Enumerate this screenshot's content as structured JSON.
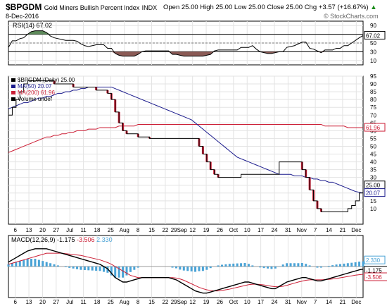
{
  "header": {
    "symbol": "$BPGDM",
    "name": "Gold Miners Bullish Percent Index",
    "exchange": "INDX",
    "date": "8-Dec-2016",
    "quote": "Open 25.00  High 25.00  Low 25.00  Close 25.00  Chg +3.57 (+16.67%)",
    "quote_arrow": "▲",
    "watermark": "© StockCharts.com"
  },
  "chart_data": [
    {
      "type": "line",
      "panel": "rsi",
      "legend": "RSI(14) 67.02",
      "ylim": [
        0,
        100
      ],
      "ticks": [
        10,
        30,
        50,
        70,
        90
      ],
      "overbought": 70,
      "oversold": 30,
      "last_value_label": "67.02",
      "x": [
        0,
        2,
        4,
        6,
        8,
        10,
        12,
        14,
        16,
        18,
        20,
        22,
        24,
        26,
        28,
        30,
        32,
        34,
        36,
        38,
        40,
        42,
        44,
        46,
        48,
        50,
        52,
        54,
        56,
        58,
        60,
        62,
        64,
        66,
        68,
        70,
        72,
        74,
        76,
        78,
        80,
        82,
        84,
        86,
        88,
        90,
        92,
        94,
        96,
        98,
        100,
        102,
        104,
        106,
        108,
        110,
        112,
        114,
        116,
        118,
        120,
        122,
        124,
        126,
        128,
        130,
        132,
        134,
        136,
        138,
        140,
        142,
        144,
        146,
        148,
        150,
        152,
        154,
        156,
        158,
        160,
        162,
        164,
        166,
        168,
        170,
        172,
        174,
        176,
        178,
        180,
        182,
        184,
        186
      ],
      "values": [
        40,
        55,
        55,
        60,
        62,
        70,
        76,
        78,
        78,
        78,
        74,
        66,
        62,
        60,
        58,
        56,
        56,
        56,
        54,
        48,
        44,
        42,
        44,
        46,
        46,
        46,
        38,
        38,
        26,
        22,
        20,
        20,
        20,
        20,
        24,
        30,
        32,
        32,
        32,
        32,
        32,
        32,
        32,
        24,
        24,
        22,
        20,
        20,
        20,
        20,
        20,
        20,
        22,
        24,
        32,
        34,
        34,
        34,
        34,
        34,
        34,
        40,
        40,
        40,
        44,
        36,
        30,
        28,
        26,
        26,
        28,
        30,
        30,
        40,
        42,
        44,
        48,
        52,
        52,
        38,
        36,
        32,
        28,
        34,
        34,
        34,
        38,
        38,
        44,
        44,
        50,
        56,
        62,
        67.02
      ]
    },
    {
      "type": "line",
      "panel": "price",
      "legend": [
        {
          "name": "$BPGDM (Daily) 25.00",
          "color": "#000000"
        },
        {
          "name": "MA(50) 20.07",
          "color": "#1a1a8c"
        },
        {
          "name": "MA(200) 61.96",
          "color": "#cc1f36"
        },
        {
          "name": "Volume undef",
          "color": "#000000"
        }
      ],
      "ylim": [
        0,
        95
      ],
      "y_ticks": [
        10,
        15,
        20,
        25,
        30,
        35,
        40,
        45,
        50,
        55,
        60,
        65,
        70,
        75,
        80,
        85,
        90,
        95
      ],
      "x_labels": [
        "6",
        "13",
        "20",
        "27",
        "Jul",
        "11",
        "18",
        "25",
        "Aug",
        "8",
        "15",
        "22",
        "29Sep",
        "12",
        "19",
        "26",
        "Oct",
        "10",
        "17",
        "24",
        "31",
        "Nov",
        "7",
        "14",
        "21",
        "Dec"
      ],
      "x": [
        0,
        2,
        4,
        6,
        8,
        10,
        12,
        14,
        16,
        18,
        20,
        22,
        24,
        26,
        28,
        30,
        32,
        34,
        36,
        38,
        40,
        42,
        44,
        46,
        48,
        50,
        52,
        54,
        56,
        58,
        60,
        62,
        64,
        66,
        68,
        70,
        72,
        74,
        76,
        78,
        80,
        82,
        84,
        86,
        88,
        90,
        92,
        94,
        96,
        98,
        100,
        102,
        104,
        106,
        108,
        110,
        112,
        114,
        116,
        118,
        120,
        122,
        124,
        126,
        128,
        130,
        132,
        134,
        136,
        138,
        140,
        142,
        144,
        146,
        148,
        150,
        152,
        154,
        156,
        158,
        160,
        162,
        164,
        166,
        168,
        170,
        172,
        174,
        176,
        178,
        180,
        182,
        184,
        186
      ],
      "values": [
        70,
        75,
        80,
        85,
        90,
        92,
        92,
        92,
        92,
        92,
        92,
        92,
        90,
        90,
        90,
        90,
        90,
        88,
        88,
        88,
        88,
        88,
        88,
        86,
        86,
        86,
        84,
        80,
        72,
        65,
        60,
        58,
        58,
        58,
        56,
        56,
        56,
        55,
        55,
        55,
        55,
        55,
        55,
        55,
        55,
        55,
        55,
        55,
        55,
        55,
        50,
        45,
        40,
        35,
        32,
        30,
        30,
        30,
        30,
        30,
        30,
        32,
        32,
        32,
        32,
        32,
        32,
        32,
        32,
        32,
        32,
        40,
        40,
        40,
        40,
        40,
        40,
        35,
        30,
        22,
        15,
        10,
        8,
        8,
        8,
        8,
        8,
        8,
        8,
        10,
        12,
        15,
        20,
        25
      ],
      "ma50": [
        74,
        75,
        76,
        77,
        78,
        78,
        79,
        80,
        81,
        81,
        82,
        82,
        83,
        84,
        84,
        85,
        85,
        86,
        86,
        87,
        87,
        88,
        88,
        88,
        88,
        88,
        88,
        88,
        87,
        86,
        85,
        84,
        83,
        82,
        81,
        80,
        79,
        78,
        77,
        76,
        75,
        74,
        73,
        72,
        71,
        70,
        69,
        68,
        67,
        65,
        63,
        61,
        59,
        57,
        55,
        53,
        51,
        49,
        47,
        45,
        43,
        42,
        41,
        40,
        39,
        38,
        37,
        36,
        35,
        34,
        33,
        32,
        32,
        32,
        32,
        31,
        31,
        31,
        30,
        30,
        29,
        29,
        28,
        28,
        27,
        27,
        26,
        25,
        24,
        23,
        22,
        21,
        20.5,
        20.07
      ],
      "ma200": [
        46,
        47,
        48,
        49,
        50,
        51,
        52,
        53,
        54,
        55,
        56,
        56,
        57,
        57,
        58,
        58,
        59,
        59,
        60,
        60,
        60,
        61,
        61,
        61,
        62,
        62,
        62,
        62,
        62,
        63,
        63,
        63,
        63,
        63,
        64,
        64,
        64,
        64,
        64,
        64,
        64,
        64,
        64,
        64,
        64,
        64,
        64,
        64,
        64,
        64,
        64,
        64,
        64,
        64,
        64,
        64,
        64,
        64,
        64,
        64,
        64,
        64,
        64,
        64,
        64,
        64,
        64,
        64,
        64,
        64,
        64,
        64,
        64,
        64,
        64,
        64,
        64,
        64,
        64,
        64,
        64,
        64,
        64,
        63,
        63,
        63,
        63,
        63,
        63,
        62,
        62,
        62,
        62,
        61.96
      ],
      "last_labels": [
        "61.96",
        "25.00",
        "20.07"
      ]
    },
    {
      "type": "bar",
      "panel": "macd",
      "legend": [
        {
          "name": "MACD(12,26,9) -1.175",
          "color": "#000000"
        },
        {
          "name": "-3.506",
          "color": "#cc1f36"
        },
        {
          "name": "2.330",
          "color": "#4aa3d6"
        }
      ],
      "macd_label": "MACD(12,26,9)",
      "macd_value": "-1.175",
      "signal_value": "-3.506",
      "hist_value": "2.330",
      "last_labels": [
        "2.330",
        "-1.175",
        "-3.506"
      ],
      "ylim": [
        -14,
        14
      ],
      "x": [
        0,
        2,
        4,
        6,
        8,
        10,
        12,
        14,
        16,
        18,
        20,
        22,
        24,
        26,
        28,
        30,
        32,
        34,
        36,
        38,
        40,
        42,
        44,
        46,
        48,
        50,
        52,
        54,
        56,
        58,
        60,
        62,
        64,
        66,
        68,
        70,
        72,
        74,
        76,
        78,
        80,
        82,
        84,
        86,
        88,
        90,
        92,
        94,
        96,
        98,
        100,
        102,
        104,
        106,
        108,
        110,
        112,
        114,
        116,
        118,
        120,
        122,
        124,
        126,
        128,
        130,
        132,
        134,
        136,
        138,
        140,
        142,
        144,
        146,
        148,
        150,
        152,
        154,
        156,
        158,
        160,
        162,
        164,
        166,
        168,
        170,
        172,
        174,
        176,
        178,
        180,
        182,
        184,
        186
      ],
      "macd": [
        2,
        3,
        4,
        5,
        6,
        7,
        7.5,
        8,
        8,
        8,
        8,
        7.5,
        7,
        6.5,
        6,
        5.5,
        5,
        4.5,
        4,
        3.5,
        3,
        2.5,
        2,
        1.5,
        1,
        0,
        -1,
        -3,
        -5,
        -6,
        -7,
        -7,
        -6.5,
        -6,
        -5.5,
        -5,
        -5,
        -5,
        -5,
        -5,
        -5,
        -5,
        -5,
        -5.5,
        -6,
        -7,
        -8,
        -9,
        -10,
        -11,
        -11.5,
        -12,
        -12,
        -11.5,
        -11,
        -10.5,
        -10,
        -9.5,
        -9,
        -8.5,
        -8,
        -7.5,
        -7,
        -7,
        -7.5,
        -8,
        -8.5,
        -9,
        -9.5,
        -10,
        -10,
        -9,
        -8,
        -7,
        -6.5,
        -6,
        -5.5,
        -5,
        -5,
        -5.5,
        -6,
        -6.5,
        -6.5,
        -6,
        -5.5,
        -5,
        -4.5,
        -4,
        -3.5,
        -3,
        -2.5,
        -2,
        -1.5,
        -1.175
      ],
      "signal": [
        1,
        1.5,
        2,
        2.5,
        3,
        3.5,
        4,
        4.5,
        5,
        5.5,
        6,
        6,
        6,
        6,
        6,
        5.8,
        5.6,
        5.4,
        5.2,
        5,
        4.6,
        4.2,
        3.8,
        3.4,
        3,
        2.4,
        1.8,
        1,
        0,
        -1,
        -2,
        -3,
        -4,
        -4.5,
        -5,
        -5,
        -5,
        -5,
        -5,
        -5,
        -5,
        -5,
        -5,
        -5,
        -5.2,
        -5.6,
        -6.2,
        -7,
        -7.8,
        -8.6,
        -9.4,
        -10,
        -10.5,
        -10.8,
        -11,
        -11,
        -10.8,
        -10.5,
        -10.2,
        -9.8,
        -9.4,
        -9,
        -8.6,
        -8.2,
        -8,
        -8,
        -8.1,
        -8.3,
        -8.6,
        -8.9,
        -9.1,
        -9.1,
        -8.9,
        -8.5,
        -8,
        -7.5,
        -7,
        -6.6,
        -6.2,
        -6,
        -6,
        -6,
        -6,
        -5.9,
        -5.8,
        -5.6,
        -5.4,
        -5.1,
        -4.8,
        -4.5,
        -4.2,
        -3.9,
        -3.7,
        -3.506
      ]
    }
  ]
}
